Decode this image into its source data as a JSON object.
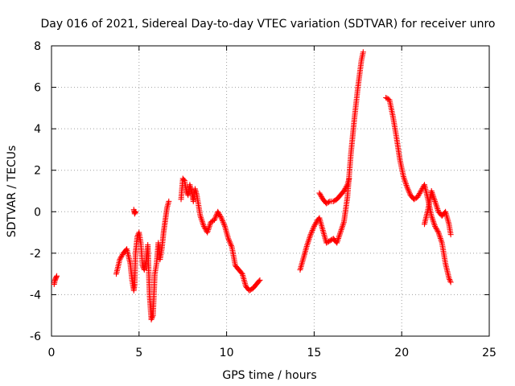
{
  "chart_data": {
    "type": "scatter",
    "title": "Day 016 of 2021, Sidereal Day-to-day VTEC variation (SDTVAR) for receiver unro",
    "xlabel": "GPS time / hours",
    "ylabel": "SDTVAR / TECUs",
    "xlim": [
      0,
      25
    ],
    "ylim": [
      -6,
      8
    ],
    "x_ticks": [
      "0",
      "5",
      "10",
      "15",
      "20",
      "25"
    ],
    "y_ticks": [
      "-6",
      "-4",
      "-2",
      "0",
      "2",
      "4",
      "6",
      "8"
    ],
    "grid": true,
    "marker": "+",
    "color": "#ff0000",
    "series": [
      {
        "name": "SDTVAR",
        "segments": [
          {
            "x": [
              0.15,
              0.2,
              0.25,
              0.3
            ],
            "y": [
              -3.5,
              -3.3,
              -3.2,
              -3.1
            ]
          },
          {
            "x": [
              3.7,
              3.9,
              4.1,
              4.3,
              4.5,
              4.6,
              4.7,
              4.75,
              4.8,
              4.9,
              5.0,
              5.1,
              5.2,
              5.3,
              5.4,
              5.5,
              5.6,
              5.7,
              5.8,
              5.9,
              6.0,
              6.1,
              6.2,
              6.3,
              6.4,
              6.5,
              6.6,
              6.7
            ],
            "y": [
              -3.0,
              -2.3,
              -2.0,
              -1.8,
              -2.5,
              -3.3,
              -3.8,
              -3.5,
              -2.0,
              -1.2,
              -1.0,
              -1.5,
              -2.6,
              -2.8,
              -2.4,
              -1.6,
              -4.0,
              -5.2,
              -5.0,
              -3.0,
              -2.5,
              -1.5,
              -2.3,
              -1.8,
              -1.0,
              -0.4,
              0.2,
              0.5
            ]
          },
          {
            "x": [
              4.7,
              4.75,
              4.8
            ],
            "y": [
              0.1,
              -0.1,
              0.0
            ]
          },
          {
            "x": [
              7.4,
              7.5,
              7.6,
              7.7,
              7.8,
              7.9,
              8.0,
              8.1,
              8.2,
              8.3,
              8.5,
              8.7,
              8.9,
              9.1,
              9.3,
              9.5,
              9.7,
              9.9,
              10.1,
              10.3,
              10.5,
              10.7,
              10.9,
              11.1,
              11.3,
              11.5,
              11.7,
              11.9
            ],
            "y": [
              0.6,
              1.6,
              1.5,
              1.0,
              0.8,
              1.3,
              1.0,
              0.5,
              1.1,
              0.8,
              -0.2,
              -0.7,
              -1.0,
              -0.5,
              -0.4,
              0.0,
              -0.3,
              -0.7,
              -1.3,
              -1.7,
              -2.6,
              -2.8,
              -3.0,
              -3.6,
              -3.8,
              -3.7,
              -3.5,
              -3.3
            ]
          },
          {
            "x": [
              14.2,
              14.4,
              14.6,
              14.8,
              15.0,
              15.2,
              15.3,
              15.5,
              15.7,
              15.9,
              16.1,
              16.3,
              16.5,
              16.7,
              16.9,
              17.1,
              17.3,
              17.5,
              17.7,
              17.8
            ],
            "y": [
              -2.8,
              -2.2,
              -1.6,
              -1.1,
              -0.7,
              -0.4,
              -0.3,
              -0.9,
              -1.5,
              -1.4,
              -1.3,
              -1.5,
              -1.0,
              -0.5,
              0.7,
              2.8,
              4.5,
              6.0,
              7.3,
              7.7
            ]
          },
          {
            "x": [
              15.3,
              15.5,
              15.7,
              15.9,
              16.1,
              16.3,
              16.5,
              16.7,
              16.9,
              17.0
            ],
            "y": [
              0.9,
              0.6,
              0.4,
              0.5,
              0.5,
              0.6,
              0.8,
              1.0,
              1.3,
              1.6
            ]
          },
          {
            "x": [
              19.1,
              19.3,
              19.5,
              19.7,
              19.9,
              20.1,
              20.3,
              20.5,
              20.7,
              20.9,
              21.1,
              21.3,
              21.5,
              21.7,
              21.9,
              22.1,
              22.3,
              22.5,
              22.7,
              22.8
            ],
            "y": [
              5.5,
              5.4,
              4.6,
              3.6,
              2.5,
              1.7,
              1.2,
              0.8,
              0.6,
              0.7,
              1.0,
              1.3,
              0.6,
              -0.2,
              -0.7,
              -1.0,
              -1.5,
              -2.5,
              -3.2,
              -3.4
            ]
          },
          {
            "x": [
              21.3,
              21.5,
              21.7,
              21.9,
              22.1,
              22.3,
              22.5,
              22.7,
              22.8
            ],
            "y": [
              -0.6,
              0.1,
              1.0,
              0.5,
              0.0,
              -0.2,
              0.0,
              -0.6,
              -1.1
            ]
          }
        ]
      }
    ]
  }
}
